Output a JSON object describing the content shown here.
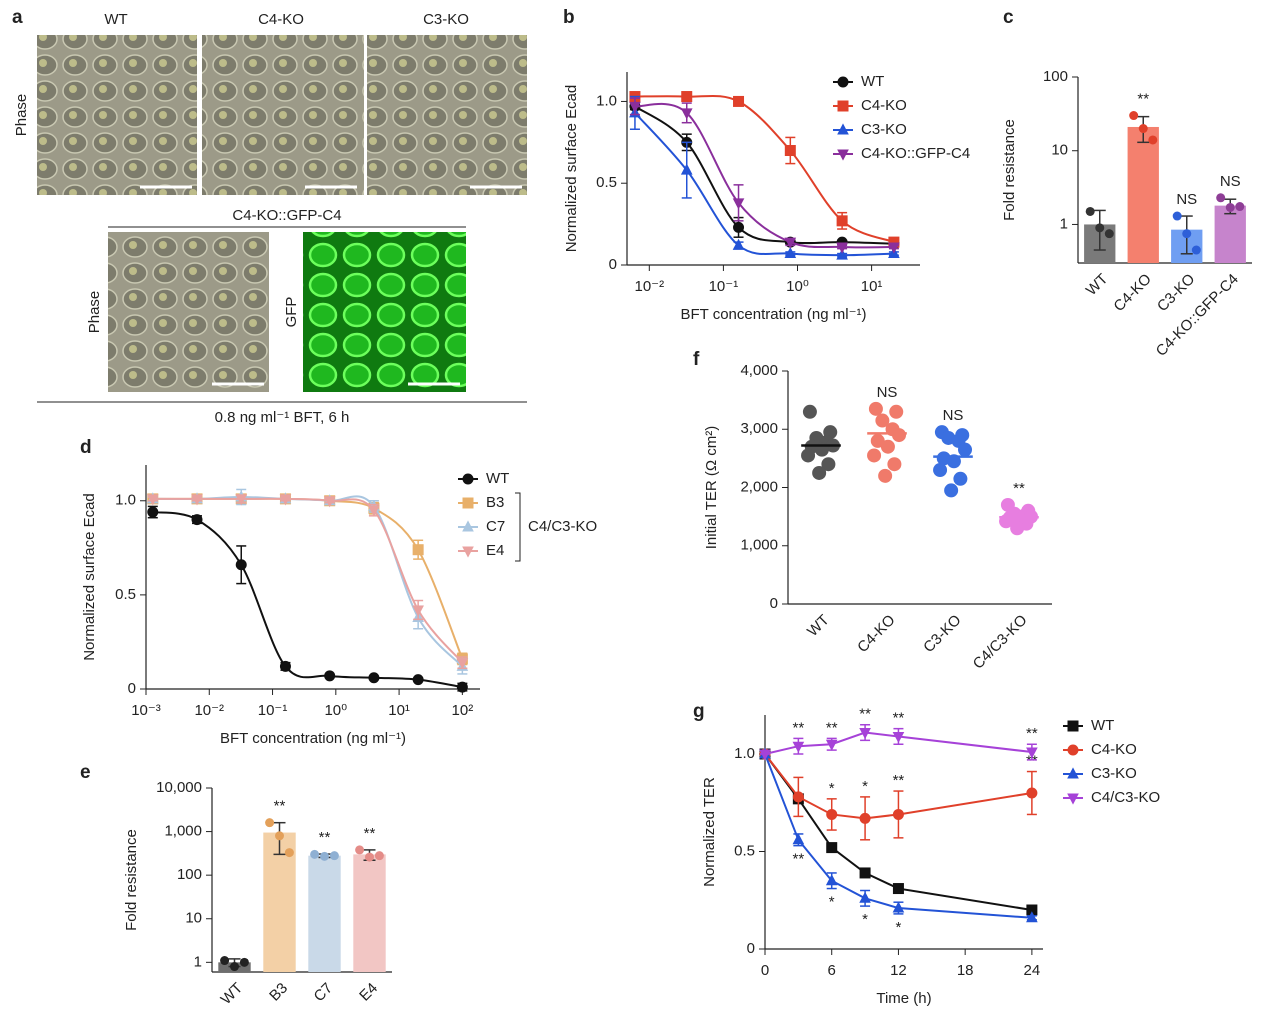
{
  "image_panel": {
    "label": "a",
    "columns": [
      "WT",
      "C4-KO",
      "C3-KO"
    ],
    "row_label": "Phase",
    "group_label": "C4-KO::GFP-C4",
    "group_rows": [
      "Phase",
      "GFP"
    ],
    "caption": "0.8 ng ml⁻¹ BFT, 6 h"
  },
  "chart_data": [
    {
      "panel_label": "b",
      "type": "line",
      "fit": true,
      "x": [
        0.0064,
        0.032,
        0.16,
        0.8,
        4,
        20
      ],
      "xscale": "log",
      "xlim": [
        0.005,
        45
      ],
      "xticks": [
        {
          "value": 0.01,
          "label": "10⁻²"
        },
        {
          "value": 0.1,
          "label": "10⁻¹"
        },
        {
          "value": 1,
          "label": "10⁰"
        },
        {
          "value": 10,
          "label": "10¹"
        }
      ],
      "ylim": [
        0,
        1.18
      ],
      "yticks": [
        0,
        0.5,
        {
          "value": 1,
          "label": "1.0"
        }
      ],
      "xlabel": "BFT concentration (ng ml⁻¹)",
      "ylabel": "Normalized surface Ecad",
      "series": [
        {
          "name": "WT",
          "color": "#111111",
          "marker": "circle",
          "values": [
            0.97,
            0.75,
            0.23,
            0.14,
            0.14,
            0.13
          ],
          "errors": [
            0.02,
            0.05,
            0.06,
            0.01,
            0.01,
            0.02
          ]
        },
        {
          "name": "C4-KO",
          "color": "#e0402a",
          "marker": "square",
          "values": [
            1.03,
            1.03,
            1.0,
            0.7,
            0.27,
            0.14
          ],
          "errors": [
            0.01,
            0.01,
            0.01,
            0.08,
            0.05,
            0.02
          ]
        },
        {
          "name": "C3-KO",
          "color": "#2353d6",
          "marker": "triangle",
          "values": [
            0.93,
            0.58,
            0.12,
            0.07,
            0.06,
            0.07
          ],
          "errors": [
            0.1,
            0.17,
            0.02,
            0.01,
            0.01,
            0.01
          ]
        },
        {
          "name": "C4-KO::GFP-C4",
          "color": "#8a2f9c",
          "marker": "triangle-down",
          "values": [
            0.97,
            0.93,
            0.38,
            0.14,
            0.11,
            0.11
          ],
          "errors": [
            0.05,
            0.06,
            0.11,
            0.02,
            0.01,
            0.01
          ]
        }
      ]
    },
    {
      "panel_label": "c",
      "type": "bar",
      "yscale": "log",
      "ylim": [
        0.3,
        100
      ],
      "yticks": [
        1,
        10,
        100
      ],
      "ylabel": "Fold resistance",
      "categories": [
        "WT",
        "C4-KO",
        "C3-KO",
        "C4-KO::GFP-C4"
      ],
      "values": [
        1,
        21,
        0.85,
        1.8
      ],
      "errors": [
        0.55,
        8,
        0.45,
        0.4
      ],
      "colors": [
        "#7a7a7a",
        "#f4806e",
        "#6f9ef2",
        "#c684cc"
      ],
      "point_colors": [
        "#333333",
        "#e0402a",
        "#2d5fd8",
        "#8e3e96"
      ],
      "points": [
        [
          1.5,
          0.9,
          0.75
        ],
        [
          30,
          20,
          14
        ],
        [
          1.3,
          0.75,
          0.45
        ],
        [
          2.3,
          1.7,
          1.75
        ]
      ],
      "annotations": [
        null,
        "**",
        "NS",
        "NS"
      ]
    },
    {
      "panel_label": "d",
      "type": "line",
      "fit": true,
      "x": [
        0.00128,
        0.0064,
        0.032,
        0.16,
        0.8,
        4,
        20,
        100
      ],
      "xscale": "log",
      "xlim": [
        0.001,
        190
      ],
      "xticks": [
        {
          "value": 0.001,
          "label": "10⁻³"
        },
        {
          "value": 0.01,
          "label": "10⁻²"
        },
        {
          "value": 0.1,
          "label": "10⁻¹"
        },
        {
          "value": 1,
          "label": "10⁰"
        },
        {
          "value": 10,
          "label": "10¹"
        },
        {
          "value": 100,
          "label": "10²"
        }
      ],
      "ylim": [
        0,
        1.19
      ],
      "yticks": [
        0,
        0.5,
        {
          "value": 1,
          "label": "1.0"
        }
      ],
      "xlabel": "BFT concentration (ng ml⁻¹)",
      "ylabel": "Normalized surface Ecad",
      "bracket_label": "C4/C3-KO",
      "series": [
        {
          "name": "WT",
          "color": "#111111",
          "marker": "circle",
          "values": [
            0.94,
            0.9,
            0.66,
            0.12,
            0.07,
            0.06,
            0.05,
            0.01
          ],
          "errors": [
            0.03,
            0.02,
            0.1,
            0.02,
            0,
            0,
            0,
            0.02
          ]
        },
        {
          "name": "B3",
          "color": "#e8b06a",
          "marker": "square",
          "values": [
            1.01,
            1.01,
            1.01,
            1.01,
            1.0,
            0.96,
            0.74,
            0.16
          ],
          "errors": [
            0.01,
            0.01,
            0.02,
            0.01,
            0.01,
            0.03,
            0.05,
            0.03
          ]
        },
        {
          "name": "C7",
          "color": "#a9c6e0",
          "marker": "triangle",
          "values": [
            1.01,
            1.01,
            1.02,
            1.01,
            1.0,
            0.97,
            0.38,
            0.12
          ],
          "errors": [
            0.01,
            0.01,
            0.04,
            0.01,
            0.01,
            0.03,
            0.06,
            0.04
          ]
        },
        {
          "name": "E4",
          "color": "#e9a2a0",
          "marker": "triangle-down",
          "values": [
            1.01,
            1.01,
            1.01,
            1.01,
            1.0,
            0.95,
            0.42,
            0.14
          ],
          "errors": [
            0.01,
            0.01,
            0.02,
            0.01,
            0.01,
            0.03,
            0.05,
            0.03
          ]
        }
      ]
    },
    {
      "panel_label": "e",
      "type": "bar",
      "yscale": "log",
      "ylim": [
        0.6,
        10000
      ],
      "yticks": [
        1,
        10,
        100,
        {
          "value": 1000,
          "label": "1,000"
        },
        {
          "value": 10000,
          "label": "10,000"
        }
      ],
      "ylabel": "Fold resistance",
      "categories": [
        "WT",
        "B3",
        "C7",
        "E4"
      ],
      "values": [
        1,
        950,
        280,
        300
      ],
      "errors": [
        0.2,
        650,
        25,
        80
      ],
      "colors": [
        "#6e6e6e",
        "#f3d0a6",
        "#c9d9e8",
        "#f2c6c4"
      ],
      "point_colors": [
        "#222222",
        "#e3a05a",
        "#8fb0d3",
        "#e48c88"
      ],
      "points": [
        [
          1.1,
          0.8,
          1.0
        ],
        [
          1600,
          800,
          330
        ],
        [
          300,
          270,
          280
        ],
        [
          380,
          260,
          280
        ]
      ],
      "annotations": [
        null,
        "**",
        "**",
        "**"
      ]
    },
    {
      "panel_label": "f",
      "type": "strip",
      "ylim": [
        0,
        4000
      ],
      "yticks": [
        0,
        {
          "value": 1000,
          "label": "1,000"
        },
        {
          "value": 2000,
          "label": "2,000"
        },
        {
          "value": 3000,
          "label": "3,000"
        },
        {
          "value": 4000,
          "label": "4,000"
        }
      ],
      "ylabel": "Initial TER (Ω cm²)",
      "categories": [
        "WT",
        "C4-KO",
        "C3-KO",
        "C4/C3-KO"
      ],
      "values": [
        2720,
        2930,
        2530,
        1490
      ],
      "colors": [
        "#555555",
        "#f07a6a",
        "#3a6fe0",
        "#e77ee0"
      ],
      "points": [
        [
          3300,
          2950,
          2850,
          2780,
          2720,
          2700,
          2650,
          2550,
          2400,
          2250
        ],
        [
          3350,
          3300,
          3150,
          3000,
          2900,
          2800,
          2700,
          2550,
          2400,
          2200
        ],
        [
          2950,
          2900,
          2850,
          2800,
          2650,
          2500,
          2450,
          2300,
          2150,
          1950
        ],
        [
          1700,
          1600,
          1550,
          1520,
          1500,
          1480,
          1450,
          1420,
          1380,
          1300
        ]
      ],
      "annotations": [
        null,
        "NS",
        "NS",
        "**"
      ]
    },
    {
      "panel_label": "g",
      "type": "line",
      "fit": false,
      "x": [
        0,
        3,
        6,
        9,
        12,
        24
      ],
      "xlim": [
        0,
        25
      ],
      "xticks": [
        0,
        6,
        12,
        18,
        24
      ],
      "ylim": [
        0,
        1.2
      ],
      "yticks": [
        0,
        0.5,
        {
          "value": 1,
          "label": "1.0"
        }
      ],
      "xlabel": "Time (h)",
      "ylabel": "Normalized TER",
      "series": [
        {
          "name": "WT",
          "color": "#111111",
          "marker": "square",
          "values": [
            1.0,
            0.77,
            0.52,
            0.39,
            0.31,
            0.2
          ],
          "errors": [
            0,
            0.02,
            0.01,
            0.01,
            0.01,
            0.01
          ]
        },
        {
          "name": "C4-KO",
          "color": "#e0402a",
          "marker": "circle",
          "values": [
            1.0,
            0.78,
            0.69,
            0.67,
            0.69,
            0.8
          ],
          "errors": [
            0,
            0.1,
            0.08,
            0.11,
            0.12,
            0.11
          ],
          "annotations": [
            null,
            null,
            "*",
            "*",
            "**",
            "**"
          ],
          "annotation_side": "above"
        },
        {
          "name": "C3-KO",
          "color": "#2353d6",
          "marker": "triangle",
          "values": [
            1.0,
            0.56,
            0.35,
            0.26,
            0.21,
            0.16
          ],
          "errors": [
            0,
            0.03,
            0.04,
            0.04,
            0.03,
            0.01
          ],
          "annotations": [
            null,
            "**",
            "*",
            "*",
            "*",
            null
          ],
          "annotation_side": "below"
        },
        {
          "name": "C4/C3-KO",
          "color": "#a642d8",
          "marker": "triangle-down",
          "values": [
            1.0,
            1.04,
            1.05,
            1.11,
            1.09,
            1.01
          ],
          "errors": [
            0,
            0.04,
            0.03,
            0.04,
            0.04,
            0.04
          ],
          "annotations": [
            null,
            "**",
            "**",
            "**",
            "**",
            "**"
          ],
          "annotation_side": "above"
        }
      ]
    }
  ]
}
